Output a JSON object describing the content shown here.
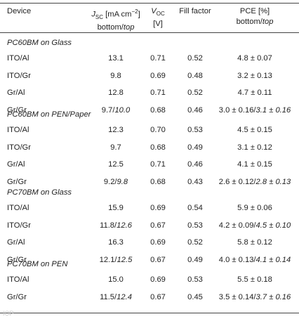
{
  "header": {
    "device": "Device",
    "jsc_line1": "J",
    "jsc_sub": "SC",
    "jsc_unit": " [mA cm",
    "jsc_sup": "−2",
    "jsc_close": "]",
    "jsc_line2a": "bottom/",
    "jsc_line2b": "top",
    "voc_line1": "V",
    "voc_sub": "OC",
    "voc_line2": "[V]",
    "ff": "Fill factor",
    "pce_line1": "PCE [%]",
    "pce_line2a": "bottom/",
    "pce_line2b": "top"
  },
  "sections": [
    {
      "title": "PC60BM on Glass",
      "rows": [
        {
          "device": "ITO/Al",
          "jsc": "13.1",
          "jsc_top": "",
          "voc": "0.71",
          "ff": "0.52",
          "pce": "4.8 ± 0.07",
          "pce_top": ""
        },
        {
          "device": "ITO/Gr",
          "jsc": "9.8",
          "jsc_top": "",
          "voc": "0.69",
          "ff": "0.48",
          "pce": "3.2 ± 0.13",
          "pce_top": ""
        },
        {
          "device": "Gr/Al",
          "jsc": "12.8",
          "jsc_top": "",
          "voc": "0.71",
          "ff": "0.52",
          "pce": "4.7 ± 0.11",
          "pce_top": ""
        },
        {
          "device": "Gr/Gr",
          "jsc": "9.7/",
          "jsc_top": "10.0",
          "voc": "0.68",
          "ff": "0.46",
          "pce": "3.0 ± 0.16/",
          "pce_top": "3.1 ± 0.16"
        }
      ]
    },
    {
      "title": "PC60BM on PEN/Paper",
      "rows": [
        {
          "device": "ITO/Al",
          "jsc": "12.3",
          "jsc_top": "",
          "voc": "0.70",
          "ff": "0.53",
          "pce": "4.5 ± 0.15",
          "pce_top": ""
        },
        {
          "device": "ITO/Gr",
          "jsc": "9.7",
          "jsc_top": "",
          "voc": "0.68",
          "ff": "0.49",
          "pce": "3.1 ± 0.12",
          "pce_top": ""
        },
        {
          "device": "Gr/Al",
          "jsc": "12.5",
          "jsc_top": "",
          "voc": "0.71",
          "ff": "0.46",
          "pce": "4.1 ± 0.15",
          "pce_top": ""
        },
        {
          "device": "Gr/Gr",
          "jsc": "9.2/",
          "jsc_top": "9.8",
          "voc": "0.68",
          "ff": "0.43",
          "pce": "2.6 ± 0.12/",
          "pce_top": "2.8 ± 0.13"
        }
      ]
    },
    {
      "title": "PC70BM on Glass",
      "rows": [
        {
          "device": "ITO/Al",
          "jsc": "15.9",
          "jsc_top": "",
          "voc": "0.69",
          "ff": "0.54",
          "pce": "5.9 ± 0.06",
          "pce_top": ""
        },
        {
          "device": "ITO/Gr",
          "jsc": "11.8/",
          "jsc_top": "12.6",
          "voc": "0.67",
          "ff": "0.53",
          "pce": "4.2 ± 0.09/",
          "pce_top": "4.5 ± 0.10"
        },
        {
          "device": "Gr/Al",
          "jsc": "16.3",
          "jsc_top": "",
          "voc": "0.69",
          "ff": "0.52",
          "pce": "5.8 ± 0.12",
          "pce_top": ""
        },
        {
          "device": "Gr/Gr",
          "jsc": "12.1/",
          "jsc_top": "12.5",
          "voc": "0.67",
          "ff": "0.49",
          "pce": "4.0 ± 0.13/",
          "pce_top": "4.1 ± 0.14"
        }
      ]
    },
    {
      "title": "PC70BM on PEN",
      "rows": [
        {
          "device": "ITO/Al",
          "jsc": "15.0",
          "jsc_top": "",
          "voc": "0.69",
          "ff": "0.53",
          "pce": "5.5 ± 0.18",
          "pce_top": ""
        },
        {
          "device": "Gr/Gr",
          "jsc": "11.5/",
          "jsc_top": "12.4",
          "voc": "0.67",
          "ff": "0.45",
          "pce": "3.5 ± 0.14/",
          "pce_top": "3.7 ± 0.16"
        }
      ]
    }
  ]
}
